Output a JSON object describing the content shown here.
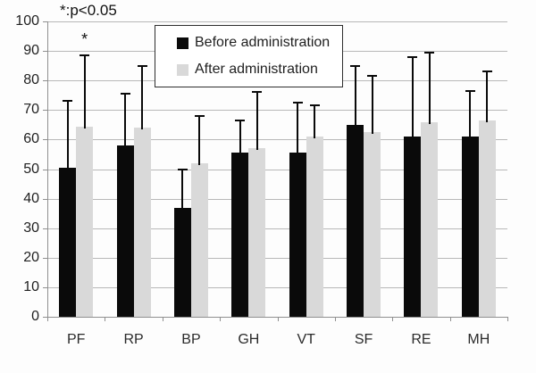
{
  "annotation": {
    "significance_note": "*:p<0.05",
    "asterisk": {
      "text": "*",
      "category": "PF",
      "series": "After administration"
    }
  },
  "legend": {
    "position": "top-center",
    "items": [
      {
        "label": "Before administration",
        "color": "#0a0a0a"
      },
      {
        "label": "After administration",
        "color": "#d9d9d9"
      }
    ]
  },
  "chart_data": {
    "type": "bar",
    "title": "",
    "xlabel": "",
    "ylabel": "",
    "categories": [
      "PF",
      "RP",
      "BP",
      "GH",
      "VT",
      "SF",
      "RE",
      "MH"
    ],
    "series": [
      {
        "name": "Before administration",
        "color": "#0a0a0a",
        "values": [
          50.5,
          58,
          37,
          55.5,
          55.5,
          65,
          61,
          61
        ],
        "error_upper": [
          22.5,
          17.5,
          13,
          11,
          17,
          20,
          27,
          15.5
        ]
      },
      {
        "name": "After administration",
        "color": "#d9d9d9",
        "values": [
          64.5,
          64,
          52,
          57,
          61,
          62.5,
          66,
          66.5
        ],
        "error_upper": [
          24,
          21,
          16,
          19,
          10.5,
          19,
          23.5,
          16.5
        ]
      }
    ],
    "ylim": [
      0,
      100
    ],
    "yticks": [
      0,
      10,
      20,
      30,
      40,
      50,
      60,
      70,
      80,
      90,
      100
    ],
    "grid": true,
    "grid_color": "#b8b8b8",
    "background": "#ffffff"
  }
}
